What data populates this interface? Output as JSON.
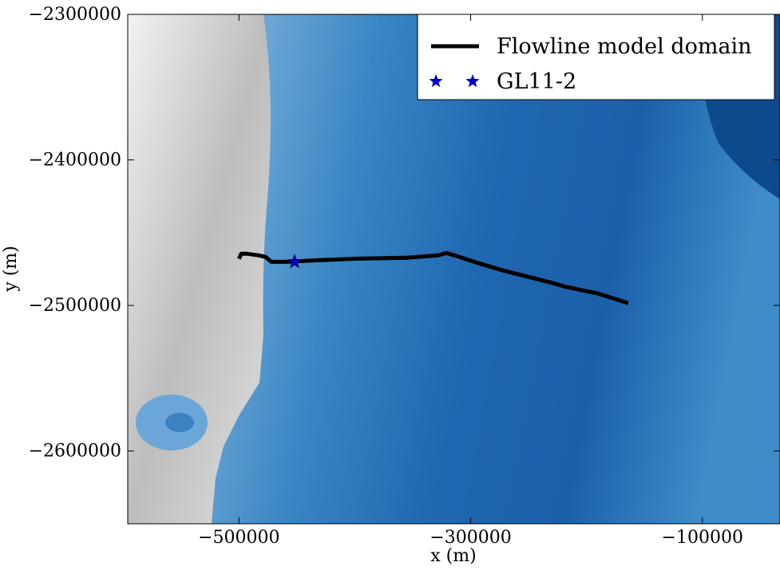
{
  "chart_data": {
    "type": "line",
    "x_label": "x (m)",
    "y_label": "y (m)",
    "xlim": [
      -596000,
      -33000
    ],
    "ylim": [
      -2650000,
      -2300000
    ],
    "xticks": [
      {
        "value": -500000,
        "label": "−500000"
      },
      {
        "value": -300000,
        "label": "−300000"
      },
      {
        "value": -100000,
        "label": "−100000"
      }
    ],
    "yticks": [
      {
        "value": -2300000,
        "label": "−2300000"
      },
      {
        "value": -2400000,
        "label": "−2400000"
      },
      {
        "value": -2500000,
        "label": "−2500000"
      },
      {
        "value": -2600000,
        "label": "−2600000"
      }
    ],
    "legend": "upper right",
    "series": [
      {
        "name": "Flowline model domain",
        "type": "line",
        "color": "#000000",
        "x": [
          -500000,
          -498000,
          -493000,
          -483000,
          -477000,
          -472000,
          -459000,
          -431000,
          -397000,
          -355000,
          -328000,
          -321000,
          -314000,
          -293000,
          -272000,
          -231000,
          -217000,
          -190000,
          -164000
        ],
        "y": [
          -2468000,
          -2464500,
          -2464500,
          -2465600,
          -2466700,
          -2470000,
          -2470000,
          -2468900,
          -2467800,
          -2467200,
          -2465600,
          -2464000,
          -2465600,
          -2471000,
          -2476000,
          -2484200,
          -2487400,
          -2491800,
          -2498400
        ]
      },
      {
        "name": "GL11-2",
        "type": "scatter",
        "color": "#0000cc",
        "x": [
          -452000
        ],
        "y": [
          -2470000
        ]
      }
    ]
  }
}
